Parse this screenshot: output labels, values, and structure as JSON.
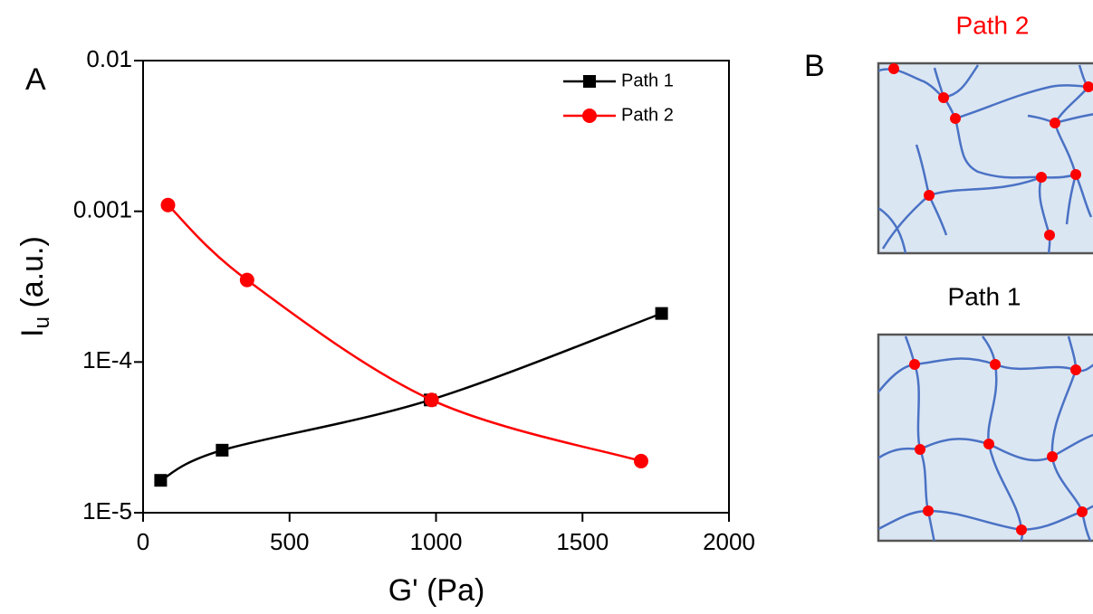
{
  "chart_data": {
    "type": "line",
    "panel_label": "A",
    "xlabel": "G' (Pa)",
    "ylabel": {
      "text": "I",
      "subscript": "u",
      "suffix": " (a.u.)"
    },
    "yscale": "log",
    "xlim": [
      0,
      2000
    ],
    "xticks": [
      0,
      500,
      1000,
      1500,
      2000
    ],
    "ylim": [
      1e-05,
      0.01
    ],
    "yticks": [
      {
        "value": 1e-05,
        "label": "1E-5"
      },
      {
        "value": 0.0001,
        "label": "1E-4"
      },
      {
        "value": 0.001,
        "label": "0.001"
      },
      {
        "value": 0.01,
        "label": "0.01"
      }
    ],
    "legend": "upper right",
    "series": [
      {
        "name": "Path 1",
        "color": "#000000",
        "marker": "square",
        "x": [
          60,
          270,
          980,
          1770
        ],
        "values": [
          1.64e-05,
          2.6e-05,
          5.6e-05,
          0.00021
        ]
      },
      {
        "name": "Path 2",
        "color": "#ff0000",
        "marker": "circle",
        "x": [
          85,
          355,
          985,
          1700
        ],
        "values": [
          0.0011,
          0.00035,
          5.6e-05,
          2.2e-05
        ]
      }
    ]
  },
  "diagram": {
    "panel_label": "B",
    "top_title": "Path 2",
    "bottom_title": "Path 1"
  }
}
